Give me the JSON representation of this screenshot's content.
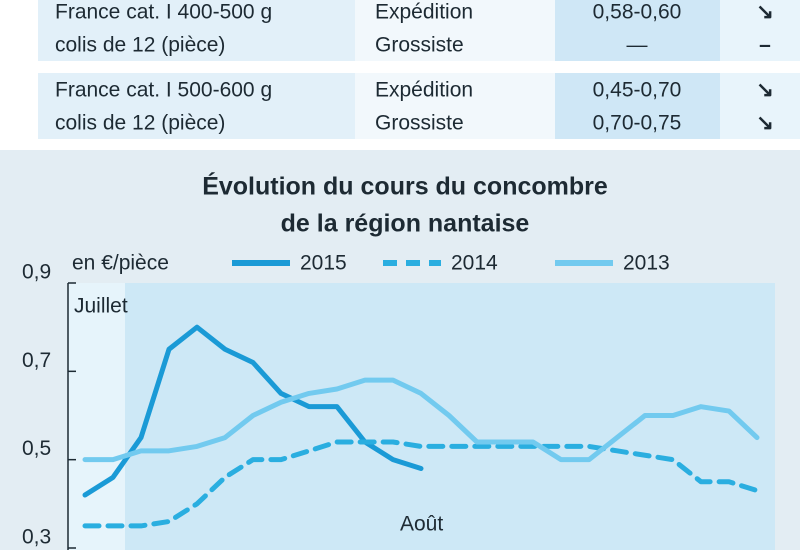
{
  "table": {
    "rows": [
      {
        "product": [
          "France cat. I 400-500 g",
          "colis de 12 (pièce)"
        ],
        "stage": [
          "Expédition",
          "Grossiste"
        ],
        "price": [
          "0,58-0,60",
          "—"
        ],
        "trend": [
          "↘",
          "–"
        ]
      },
      {
        "product": [
          "France cat. I 500-600 g",
          "colis de 12 (pièce)"
        ],
        "stage": [
          "Expédition",
          "Grossiste"
        ],
        "price": [
          "0,45-0,70",
          "0,70-0,75"
        ],
        "trend": [
          "↘",
          "↘"
        ]
      }
    ]
  },
  "chart_data": {
    "type": "line",
    "title": [
      "Évolution du cours du concombre",
      "de la région nantaise"
    ],
    "ylabel": "en €/pièce",
    "annotations": [
      "Juillet",
      "Août"
    ],
    "categories": [
      null,
      null,
      null,
      null,
      null,
      null,
      null,
      null,
      null,
      null,
      null,
      null,
      null,
      null,
      null,
      null,
      null,
      null,
      null,
      null,
      null,
      null,
      null,
      null,
      null
    ],
    "ylim": [
      0.3,
      0.9
    ],
    "yticks": [
      {
        "value": 0.3,
        "label": "0,3"
      },
      {
        "value": 0.5,
        "label": "0,5"
      },
      {
        "value": 0.7,
        "label": "0,7"
      },
      {
        "value": 0.9,
        "label": "0,9"
      }
    ],
    "series": [
      {
        "name": "2015",
        "color": "#1a9ad6",
        "dashed": false,
        "values": [
          0.42,
          0.46,
          0.55,
          0.75,
          0.8,
          0.75,
          0.72,
          0.65,
          0.62,
          0.62,
          0.54,
          0.5,
          0.48,
          null,
          null,
          null,
          null,
          null,
          null,
          null,
          null,
          null,
          null,
          null,
          null
        ]
      },
      {
        "name": "2014",
        "color": "#2aaee0",
        "dashed": true,
        "values": [
          0.35,
          0.35,
          0.35,
          0.36,
          0.4,
          0.46,
          0.5,
          0.5,
          0.52,
          0.54,
          0.54,
          0.54,
          0.53,
          0.53,
          0.53,
          0.53,
          0.53,
          0.53,
          0.53,
          0.52,
          0.51,
          0.5,
          0.45,
          0.45,
          0.43
        ]
      },
      {
        "name": "2013",
        "color": "#72caef",
        "dashed": false,
        "values": [
          0.5,
          0.5,
          0.52,
          0.52,
          0.53,
          0.55,
          0.6,
          0.63,
          0.65,
          0.66,
          0.68,
          0.68,
          0.65,
          0.6,
          0.54,
          0.54,
          0.54,
          0.5,
          0.5,
          0.55,
          0.6,
          0.6,
          0.62,
          0.61,
          0.55
        ]
      }
    ]
  }
}
